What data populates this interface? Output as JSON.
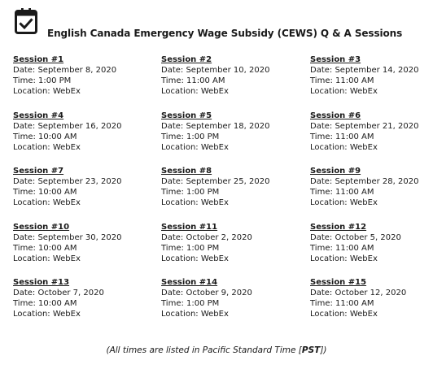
{
  "header": {
    "icon": "calendar-check-icon",
    "title": "English Canada Emergency Wage Subsidy (CEWS) Q & A Sessions"
  },
  "sessions": [
    {
      "title": "Session #1",
      "date": "Date: September 8, 2020",
      "time": "Time: 1:00 PM",
      "location": "Location: WebEx"
    },
    {
      "title": "Session #2",
      "date": "Date: September 10, 2020",
      "time": "Time: 11:00 AM",
      "location": "Location: WebEx"
    },
    {
      "title": "Session #3",
      "date": "Date: September 14, 2020",
      "time": "Time: 11:00 AM",
      "location": "Location: WebEx"
    },
    {
      "title": "Session #4",
      "date": "Date: September 16, 2020",
      "time": "Time: 10:00 AM",
      "location": "Location: WebEx"
    },
    {
      "title": "Session #5",
      "date": "Date: September 18, 2020",
      "time": "Time: 1:00 PM",
      "location": "Location: WebEx"
    },
    {
      "title": "Session #6",
      "date": "Date: September 21, 2020",
      "time": "Time: 11:00 AM",
      "location": "Location: WebEx"
    },
    {
      "title": "Session #7",
      "date": "Date: September 23, 2020",
      "time": "Time: 10:00 AM",
      "location": "Location: WebEx"
    },
    {
      "title": "Session #8",
      "date": "Date: September 25, 2020",
      "time": "Time: 1:00 PM",
      "location": "Location: WebEx"
    },
    {
      "title": "Session #9",
      "date": "Date: September 28, 2020",
      "time": "Time: 11:00 AM",
      "location": "Location: WebEx"
    },
    {
      "title": "Session #10",
      "date": "Date: September 30, 2020",
      "time": "Time: 10:00 AM",
      "location": "Location: WebEx"
    },
    {
      "title": "Session #11",
      "date": "Date: October 2, 2020",
      "time": "Time: 1:00 PM",
      "location": "Location: WebEx"
    },
    {
      "title": "Session #12",
      "date": "Date: October 5, 2020",
      "time": "Time: 11:00 AM",
      "location": "Location: WebEx"
    },
    {
      "title": "Session #13",
      "date": "Date: October 7, 2020",
      "time": "Time: 10:00 AM",
      "location": "Location: WebEx"
    },
    {
      "title": "Session #14",
      "date": "Date: October 9, 2020",
      "time": "Time: 1:00 PM",
      "location": "Location: WebEx"
    },
    {
      "title": "Session #15",
      "date": "Date: October 12, 2020",
      "time": "Time: 11:00 AM",
      "location": "Location: WebEx"
    }
  ],
  "footer": {
    "prefix": "(All times are listed in Pacific Standard Time [",
    "abbr": "PST",
    "suffix": "])"
  },
  "colors": {
    "text": "#1a1a1a",
    "background": "#ffffff"
  }
}
